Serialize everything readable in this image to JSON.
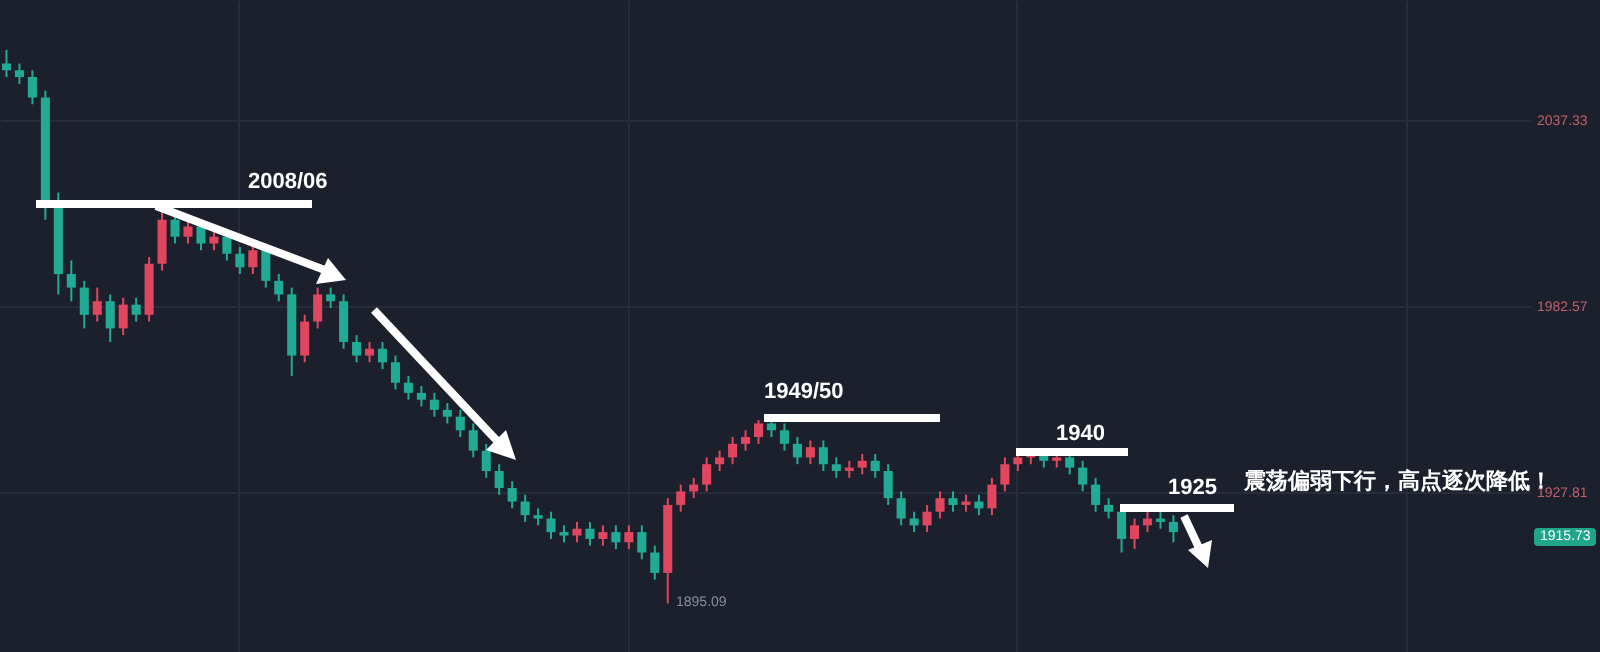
{
  "chart_data": {
    "type": "candlestick",
    "categories": [
      null,
      null,
      null,
      null,
      null,
      null,
      null,
      null,
      null,
      null,
      null,
      null,
      null,
      null,
      null,
      null,
      null,
      null,
      null,
      null,
      null,
      null,
      null,
      null,
      null,
      null,
      null,
      null,
      null,
      null,
      null,
      null,
      null,
      null,
      null,
      null,
      null,
      null,
      null,
      null,
      null,
      null,
      null,
      null,
      null,
      null,
      null,
      null,
      null,
      null,
      null,
      null,
      null,
      null,
      null,
      null,
      null,
      null,
      null,
      null,
      null,
      null,
      null,
      null,
      null,
      null,
      null,
      null,
      null,
      null,
      null,
      null,
      null,
      null,
      null,
      null,
      null,
      null,
      null,
      null,
      null,
      null,
      null,
      null,
      null,
      null,
      null,
      null,
      null,
      null,
      null,
      null,
      null,
      null,
      null,
      null,
      null,
      null,
      null,
      null,
      null,
      null,
      null,
      null,
      null,
      null,
      null,
      null,
      null,
      null,
      null,
      null,
      null,
      null,
      null,
      null,
      null,
      null
    ],
    "ohlc": [
      [
        2054,
        2058,
        2050,
        2052
      ],
      [
        2052,
        2054,
        2048,
        2050
      ],
      [
        2050,
        2052,
        2042,
        2044
      ],
      [
        2044,
        2046,
        2008,
        2012
      ],
      [
        2012,
        2016,
        1986,
        1992
      ],
      [
        1992,
        1996,
        1984,
        1988
      ],
      [
        1988,
        1990,
        1976,
        1980
      ],
      [
        1980,
        1988,
        1978,
        1984
      ],
      [
        1984,
        1986,
        1972,
        1976
      ],
      [
        1976,
        1985,
        1974,
        1983
      ],
      [
        1983,
        1985,
        1978,
        1980
      ],
      [
        1980,
        1997,
        1978,
        1995
      ],
      [
        1995,
        2012,
        1993,
        2008
      ],
      [
        2008,
        2010,
        2001,
        2003
      ],
      [
        2003,
        2008,
        2001,
        2006
      ],
      [
        2006,
        2008,
        1999,
        2001
      ],
      [
        2001,
        2005,
        1999,
        2003
      ],
      [
        2003,
        2005,
        1996,
        1998
      ],
      [
        1998,
        2000,
        1992,
        1994
      ],
      [
        1994,
        2001,
        1992,
        1999
      ],
      [
        1999,
        2001,
        1988,
        1990
      ],
      [
        1990,
        1992,
        1984,
        1986
      ],
      [
        1986,
        1988,
        1962,
        1968
      ],
      [
        1968,
        1980,
        1966,
        1978
      ],
      [
        1978,
        1988,
        1976,
        1986
      ],
      [
        1986,
        1988,
        1982,
        1984
      ],
      [
        1984,
        1986,
        1970,
        1972
      ],
      [
        1972,
        1974,
        1966,
        1968
      ],
      [
        1968,
        1972,
        1966,
        1970
      ],
      [
        1970,
        1972,
        1964,
        1966
      ],
      [
        1966,
        1968,
        1958,
        1960
      ],
      [
        1960,
        1962,
        1955,
        1957
      ],
      [
        1957,
        1959,
        1953,
        1955
      ],
      [
        1955,
        1957,
        1950,
        1952
      ],
      [
        1952,
        1954,
        1948,
        1950
      ],
      [
        1950,
        1952,
        1944,
        1946
      ],
      [
        1946,
        1948,
        1938,
        1940
      ],
      [
        1940,
        1942,
        1932,
        1934
      ],
      [
        1934,
        1936,
        1927,
        1929
      ],
      [
        1929,
        1931,
        1923,
        1925
      ],
      [
        1925,
        1927,
        1919,
        1921
      ],
      [
        1921,
        1923,
        1918,
        1920
      ],
      [
        1920,
        1922,
        1914,
        1916
      ],
      [
        1916,
        1918,
        1913,
        1915
      ],
      [
        1915,
        1919,
        1913,
        1917
      ],
      [
        1917,
        1919,
        1912,
        1914
      ],
      [
        1914,
        1918,
        1912,
        1916
      ],
      [
        1916,
        1918,
        1911,
        1913
      ],
      [
        1913,
        1918,
        1911,
        1916
      ],
      [
        1916,
        1918,
        1908,
        1910
      ],
      [
        1910,
        1912,
        1902,
        1904
      ],
      [
        1904,
        1926,
        1895,
        1924
      ],
      [
        1924,
        1930,
        1922,
        1928
      ],
      [
        1928,
        1932,
        1926,
        1930
      ],
      [
        1930,
        1938,
        1928,
        1936
      ],
      [
        1936,
        1940,
        1934,
        1938
      ],
      [
        1938,
        1944,
        1936,
        1942
      ],
      [
        1942,
        1946,
        1940,
        1944
      ],
      [
        1944,
        1949,
        1942,
        1948
      ],
      [
        1948,
        1950,
        1944,
        1946
      ],
      [
        1946,
        1948,
        1940,
        1942
      ],
      [
        1942,
        1944,
        1936,
        1938
      ],
      [
        1938,
        1943,
        1936,
        1941
      ],
      [
        1941,
        1943,
        1934,
        1936
      ],
      [
        1936,
        1938,
        1932,
        1934
      ],
      [
        1934,
        1937,
        1932,
        1935
      ],
      [
        1935,
        1939,
        1933,
        1937
      ],
      [
        1937,
        1939,
        1932,
        1934
      ],
      [
        1934,
        1936,
        1924,
        1926
      ],
      [
        1926,
        1928,
        1918,
        1920
      ],
      [
        1920,
        1922,
        1916,
        1918
      ],
      [
        1918,
        1924,
        1916,
        1922
      ],
      [
        1922,
        1928,
        1920,
        1926
      ],
      [
        1926,
        1928,
        1922,
        1924
      ],
      [
        1924,
        1927,
        1922,
        1925
      ],
      [
        1925,
        1927,
        1921,
        1923
      ],
      [
        1923,
        1932,
        1921,
        1930
      ],
      [
        1930,
        1938,
        1928,
        1936
      ],
      [
        1936,
        1940,
        1934,
        1938
      ],
      [
        1938,
        1940,
        1936,
        1939
      ],
      [
        1939,
        1940,
        1935,
        1937
      ],
      [
        1937,
        1940,
        1935,
        1938
      ],
      [
        1938,
        1940,
        1933,
        1935
      ],
      [
        1935,
        1937,
        1928,
        1930
      ],
      [
        1930,
        1932,
        1922,
        1924
      ],
      [
        1924,
        1926,
        1920,
        1922
      ],
      [
        1922,
        1924,
        1910,
        1914
      ],
      [
        1914,
        1920,
        1911,
        1918
      ],
      [
        1918,
        1922,
        1916,
        1920
      ],
      [
        1920,
        1922,
        1917,
        1919
      ],
      [
        1919,
        1921,
        1913,
        1916
      ],
      null,
      null,
      null,
      null,
      null,
      null,
      null,
      null,
      null,
      null,
      null,
      null,
      null,
      null,
      null,
      null,
      null,
      null,
      null,
      null,
      null,
      null,
      null,
      null,
      null,
      null,
      null
    ],
    "ylim": [
      1880.7,
      2072.7
    ],
    "yticks": [
      {
        "value": 1927.81,
        "label": "1927.81"
      },
      {
        "value": 1982.57,
        "label": "1982.57"
      },
      {
        "value": 2037.33,
        "label": "2037.33"
      }
    ],
    "grid": true,
    "annotations": [
      "2008/06",
      "1949/50",
      "1940",
      "1925",
      "震荡偏弱下行，高点逐次降低！",
      "1895.09",
      "1915.73"
    ]
  }
}
